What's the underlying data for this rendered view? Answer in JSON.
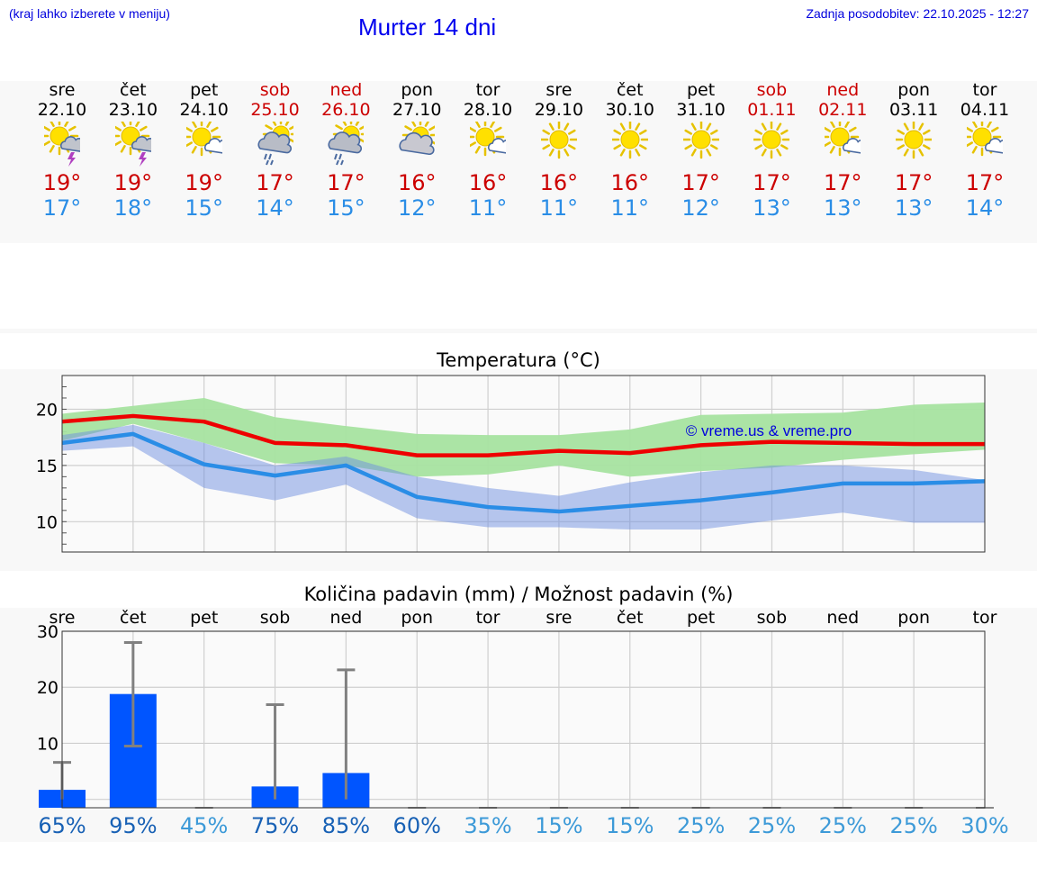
{
  "header": {
    "hint": "(kraj lahko izberete v meniju)",
    "title": "Murter 14 dni",
    "updated": "Zadnja posodobitev: 22.10.2025 - 12:27"
  },
  "days": [
    {
      "name": "sre",
      "date": "22.10",
      "icon": "sun-thunderstorm-icon",
      "max": "19°",
      "min": "17°",
      "weekend": false
    },
    {
      "name": "čet",
      "date": "23.10",
      "icon": "sun-thunderstorm-icon",
      "max": "19°",
      "min": "18°",
      "weekend": false
    },
    {
      "name": "pet",
      "date": "24.10",
      "icon": "sun-cloud-icon",
      "max": "19°",
      "min": "15°",
      "weekend": false
    },
    {
      "name": "sob",
      "date": "25.10",
      "icon": "sun-rain-cloud-icon",
      "max": "17°",
      "min": "14°",
      "weekend": true
    },
    {
      "name": "ned",
      "date": "26.10",
      "icon": "sun-rain-cloud-icon",
      "max": "17°",
      "min": "15°",
      "weekend": true
    },
    {
      "name": "pon",
      "date": "27.10",
      "icon": "cloudy-sun-icon",
      "max": "16°",
      "min": "12°",
      "weekend": false
    },
    {
      "name": "tor",
      "date": "28.10",
      "icon": "sun-cloud-icon",
      "max": "16°",
      "min": "11°",
      "weekend": false
    },
    {
      "name": "sre",
      "date": "29.10",
      "icon": "sun-icon",
      "max": "16°",
      "min": "11°",
      "weekend": false
    },
    {
      "name": "čet",
      "date": "30.10",
      "icon": "sun-icon",
      "max": "16°",
      "min": "11°",
      "weekend": false
    },
    {
      "name": "pet",
      "date": "31.10",
      "icon": "sun-icon",
      "max": "17°",
      "min": "12°",
      "weekend": false
    },
    {
      "name": "sob",
      "date": "01.11",
      "icon": "sun-icon",
      "max": "17°",
      "min": "13°",
      "weekend": true
    },
    {
      "name": "ned",
      "date": "02.11",
      "icon": "sun-cloud-icon",
      "max": "17°",
      "min": "13°",
      "weekend": true
    },
    {
      "name": "pon",
      "date": "03.11",
      "icon": "sun-icon",
      "max": "17°",
      "min": "13°",
      "weekend": false
    },
    {
      "name": "tor",
      "date": "04.11",
      "icon": "sun-cloud-icon",
      "max": "17°",
      "min": "14°",
      "weekend": false
    }
  ],
  "colors": {
    "max": "#ee0000",
    "min": "#2a8de6",
    "max_band": "#a6e3a0",
    "min_band": "#a9c2ef",
    "bar": "#0055ff",
    "weekend": "#cc0000"
  },
  "chart_data": [
    {
      "type": "line",
      "title": "Temperatura (°C)",
      "watermark": "© vreme.us & vreme.pro",
      "ylim": [
        7.3,
        23
      ],
      "yticks": [
        "10",
        "15",
        "20"
      ],
      "x": [
        0,
        1,
        2,
        3,
        4,
        5,
        6,
        7,
        8,
        9,
        10,
        11,
        12,
        13
      ],
      "series": [
        {
          "name": "max",
          "values": [
            18.9,
            19.4,
            18.9,
            17.0,
            16.8,
            15.9,
            15.9,
            16.3,
            16.1,
            16.8,
            17.1,
            17.0,
            16.9,
            16.9
          ]
        },
        {
          "name": "min",
          "values": [
            17.0,
            17.8,
            15.1,
            14.1,
            15.0,
            12.2,
            11.3,
            10.9,
            11.4,
            11.9,
            12.6,
            13.4,
            13.4,
            13.6
          ]
        }
      ],
      "bands": [
        {
          "name": "max_range",
          "low": [
            17.2,
            18.7,
            17.0,
            15.2,
            15.0,
            14.0,
            14.2,
            15.0,
            14.0,
            14.5,
            14.8,
            15.5,
            16.0,
            16.4
          ],
          "high": [
            19.6,
            20.3,
            21.0,
            19.3,
            18.5,
            17.8,
            17.7,
            17.7,
            18.2,
            19.5,
            19.6,
            19.7,
            20.4,
            20.6
          ]
        },
        {
          "name": "min_range",
          "low": [
            16.3,
            16.7,
            13.0,
            11.9,
            13.3,
            10.3,
            9.5,
            9.5,
            9.3,
            9.3,
            10.1,
            10.8,
            9.9,
            9.9
          ],
          "high": [
            17.7,
            18.6,
            17.0,
            15.0,
            15.8,
            14.0,
            13.0,
            12.3,
            13.5,
            14.4,
            15.0,
            15.0,
            14.6,
            13.7
          ]
        }
      ]
    },
    {
      "type": "bar",
      "title": "Količina padavin (mm) / Možnost padavin (%)",
      "categories": [
        "sre",
        "čet",
        "pet",
        "sob",
        "ned",
        "pon",
        "tor",
        "sre",
        "čet",
        "pet",
        "sob",
        "ned",
        "pon",
        "tor"
      ],
      "ylim": [
        -1.5,
        30
      ],
      "yticks": [
        "0",
        "10",
        "20",
        "30"
      ],
      "values": [
        1.7,
        18.8,
        0,
        2.3,
        4.7,
        0,
        0,
        0,
        0,
        0,
        0,
        0,
        0,
        0
      ],
      "error_high": [
        6.6,
        28.0,
        0,
        16.9,
        23.1,
        0,
        0,
        0,
        0,
        0,
        0,
        0,
        0,
        0
      ],
      "error_low": [
        0,
        9.5,
        0,
        0,
        0,
        0,
        0,
        0,
        0,
        0,
        0,
        0,
        0,
        0
      ],
      "chance": [
        {
          "label": "65%",
          "color": "#1861b5"
        },
        {
          "label": "95%",
          "color": "#1861b5"
        },
        {
          "label": "45%",
          "color": "#3d9ad8"
        },
        {
          "label": "75%",
          "color": "#1861b5"
        },
        {
          "label": "85%",
          "color": "#1861b5"
        },
        {
          "label": "60%",
          "color": "#1861b5"
        },
        {
          "label": "35%",
          "color": "#3d9ad8"
        },
        {
          "label": "15%",
          "color": "#3d9ad8"
        },
        {
          "label": "15%",
          "color": "#3d9ad8"
        },
        {
          "label": "25%",
          "color": "#3d9ad8"
        },
        {
          "label": "25%",
          "color": "#3d9ad8"
        },
        {
          "label": "25%",
          "color": "#3d9ad8"
        },
        {
          "label": "25%",
          "color": "#3d9ad8"
        },
        {
          "label": "30%",
          "color": "#3d9ad8"
        }
      ]
    }
  ]
}
